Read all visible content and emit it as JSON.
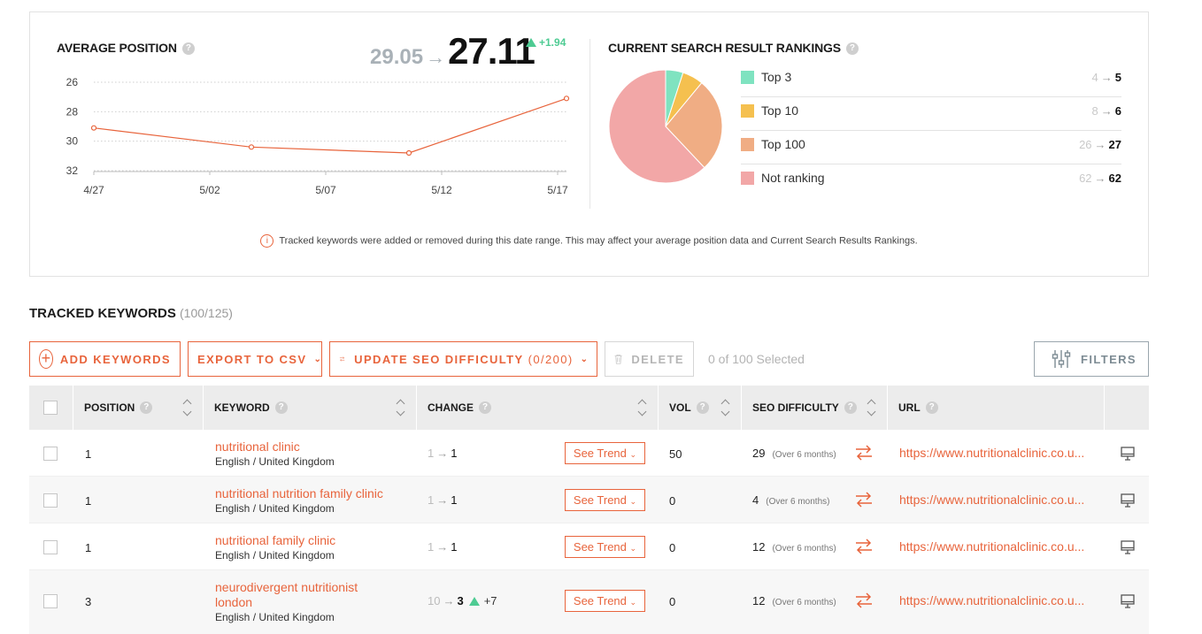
{
  "average_position": {
    "title": "AVERAGE POSITION",
    "old_value": "29.05",
    "arrow": "→",
    "new_value": "27.11",
    "delta": "+1.94"
  },
  "chart_data": [
    {
      "type": "line",
      "title": "AVERAGE POSITION",
      "x": [
        "4/27",
        "5/04",
        "5/11",
        "5/18"
      ],
      "x_tick_labels": [
        "4/27",
        "5/02",
        "5/07",
        "5/12",
        "5/17"
      ],
      "y_tick_labels": [
        "26",
        "28",
        "30",
        "32"
      ],
      "ylim": [
        26,
        32
      ],
      "y_inverted": true,
      "series": [
        {
          "values": [
            29.1,
            30.4,
            30.8,
            27.1
          ],
          "color": "#e8643c"
        }
      ],
      "grid": "horizontal-dotted"
    },
    {
      "type": "pie",
      "title": "CURRENT SEARCH RESULT RANKINGS",
      "categories": [
        "Top 3",
        "Top 10",
        "Top 100",
        "Not ranking"
      ],
      "values": [
        5,
        6,
        27,
        62
      ],
      "previous_values": [
        4,
        8,
        26,
        62
      ],
      "colors": [
        "#7fe3c0",
        "#f5c04f",
        "#f0ad84",
        "#f2a7a7"
      ]
    }
  ],
  "rankings": {
    "title": "CURRENT SEARCH RESULT RANKINGS",
    "items": [
      {
        "label": "Top 3",
        "old": "4",
        "new": "5",
        "color": "#7fe3c0"
      },
      {
        "label": "Top 10",
        "old": "8",
        "new": "6",
        "color": "#f5c04f"
      },
      {
        "label": "Top 100",
        "old": "26",
        "new": "27",
        "color": "#f0ad84"
      },
      {
        "label": "Not ranking",
        "old": "62",
        "new": "62",
        "color": "#f2a7a7"
      }
    ]
  },
  "notice": "Tracked keywords were added or removed during this date range. This may affect your average position data and Current Search Results Rankings.",
  "tracked": {
    "title": "TRACKED KEYWORDS",
    "count": "(100/125)"
  },
  "toolbar": {
    "add_keywords": "ADD KEYWORDS",
    "export_csv": "EXPORT TO CSV",
    "update_seo": "UPDATE SEO DIFFICULTY",
    "update_seo_count": "(0/200)",
    "delete": "DELETE",
    "selected": "0 of 100 Selected",
    "filters": "FILTERS"
  },
  "table": {
    "headers": {
      "position": "POSITION",
      "keyword": "KEYWORD",
      "change": "CHANGE",
      "vol": "VOL",
      "seo_difficulty": "SEO DIFFICULTY",
      "url": "URL"
    },
    "rows": [
      {
        "position": "1",
        "keyword": "nutritional clinic",
        "locale": "English / United Kingdom",
        "change_old": "1",
        "change_new": "1",
        "change_delta": "",
        "trend_label": "See Trend",
        "vol": "50",
        "difficulty": "29",
        "difficulty_note": "(Over 6 months)",
        "url": "https://www.nutritionalclinic.co.u..."
      },
      {
        "position": "1",
        "keyword": "nutritional nutrition family clinic",
        "locale": "English / United Kingdom",
        "change_old": "1",
        "change_new": "1",
        "change_delta": "",
        "trend_label": "See Trend",
        "vol": "0",
        "difficulty": "4",
        "difficulty_note": "(Over 6 months)",
        "url": "https://www.nutritionalclinic.co.u..."
      },
      {
        "position": "1",
        "keyword": "nutritional family clinic",
        "locale": "English / United Kingdom",
        "change_old": "1",
        "change_new": "1",
        "change_delta": "",
        "trend_label": "See Trend",
        "vol": "0",
        "difficulty": "12",
        "difficulty_note": "(Over 6 months)",
        "url": "https://www.nutritionalclinic.co.u..."
      },
      {
        "position": "3",
        "keyword": "neurodivergent nutritionist london",
        "locale": "English / United Kingdom",
        "change_old": "10",
        "change_new": "3",
        "change_delta": "+7",
        "trend_label": "See Trend",
        "vol": "0",
        "difficulty": "12",
        "difficulty_note": "(Over 6 months)",
        "url": "https://www.nutritionalclinic.co.u..."
      }
    ]
  },
  "colors": {
    "accent": "#e8643c",
    "positive": "#4ecb93"
  }
}
